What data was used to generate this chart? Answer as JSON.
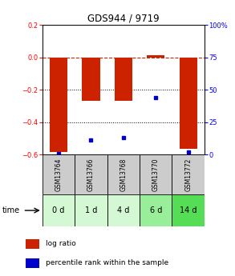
{
  "title": "GDS944 / 9719",
  "categories": [
    "GSM13764",
    "GSM13766",
    "GSM13768",
    "GSM13770",
    "GSM13772"
  ],
  "time_labels": [
    "0 d",
    "1 d",
    "4 d",
    "6 d",
    "14 d"
  ],
  "log_ratio": [
    -0.585,
    -0.27,
    -0.27,
    0.015,
    -0.565
  ],
  "percentile_rank": [
    0.5,
    11,
    13,
    44,
    2
  ],
  "left_ylim": [
    -0.6,
    0.2
  ],
  "right_ylim": [
    0,
    100
  ],
  "left_yticks": [
    0.2,
    0,
    -0.2,
    -0.4,
    -0.6
  ],
  "right_yticks": [
    100,
    75,
    50,
    25,
    0
  ],
  "bar_color": "#cc2200",
  "dot_color": "#0000cc",
  "time_row_colors": [
    "#d4f7d4",
    "#d4f7d4",
    "#d4f7d4",
    "#99ee99",
    "#55dd55"
  ],
  "gsm_row_color": "#cccccc",
  "fig_bg": "#ffffff",
  "legend_items": [
    "log ratio",
    "percentile rank within the sample"
  ]
}
